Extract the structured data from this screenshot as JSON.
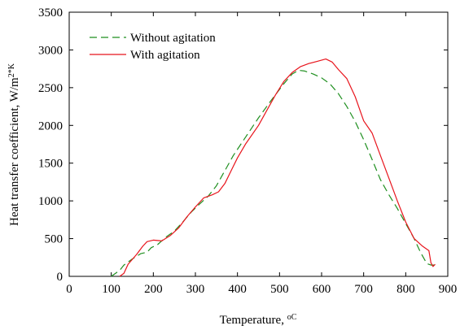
{
  "chart_data": {
    "type": "line",
    "title": "",
    "xlabel": "Temperature, ",
    "xlabel_unit": "oC",
    "ylabel": "Heat transfer coefficient, W/m",
    "ylabel_unit": "2*K",
    "xlim": [
      0,
      900
    ],
    "ylim": [
      0,
      3500
    ],
    "x_ticks": [
      0,
      100,
      200,
      300,
      400,
      500,
      600,
      700,
      800,
      900
    ],
    "y_ticks": [
      0,
      500,
      1000,
      1500,
      2000,
      2500,
      3000,
      3500
    ],
    "grid": false,
    "legend_position": "top-left",
    "series": [
      {
        "name": "Without agitation",
        "color": "#1f8f1f",
        "style": "dashed",
        "points": [
          [
            100,
            0
          ],
          [
            120,
            80
          ],
          [
            130,
            150
          ],
          [
            150,
            230
          ],
          [
            170,
            300
          ],
          [
            185,
            320
          ],
          [
            195,
            380
          ],
          [
            210,
            420
          ],
          [
            230,
            520
          ],
          [
            250,
            600
          ],
          [
            270,
            720
          ],
          [
            290,
            850
          ],
          [
            310,
            960
          ],
          [
            330,
            1060
          ],
          [
            350,
            1200
          ],
          [
            365,
            1350
          ],
          [
            370,
            1400
          ],
          [
            390,
            1600
          ],
          [
            420,
            1850
          ],
          [
            450,
            2100
          ],
          [
            480,
            2330
          ],
          [
            510,
            2550
          ],
          [
            530,
            2680
          ],
          [
            545,
            2730
          ],
          [
            560,
            2720
          ],
          [
            580,
            2680
          ],
          [
            600,
            2630
          ],
          [
            620,
            2550
          ],
          [
            640,
            2420
          ],
          [
            660,
            2250
          ],
          [
            680,
            2050
          ],
          [
            700,
            1810
          ],
          [
            720,
            1550
          ],
          [
            740,
            1280
          ],
          [
            760,
            1080
          ],
          [
            780,
            900
          ],
          [
            800,
            700
          ],
          [
            820,
            500
          ],
          [
            835,
            320
          ],
          [
            850,
            170
          ],
          [
            860,
            150
          ],
          [
            870,
            150
          ]
        ]
      },
      {
        "name": "With agitation",
        "color": "#e8141c",
        "style": "solid",
        "points": [
          [
            120,
            0
          ],
          [
            130,
            40
          ],
          [
            140,
            160
          ],
          [
            160,
            290
          ],
          [
            175,
            400
          ],
          [
            185,
            460
          ],
          [
            200,
            480
          ],
          [
            220,
            470
          ],
          [
            240,
            540
          ],
          [
            260,
            640
          ],
          [
            280,
            790
          ],
          [
            300,
            920
          ],
          [
            320,
            1040
          ],
          [
            340,
            1080
          ],
          [
            355,
            1120
          ],
          [
            370,
            1230
          ],
          [
            385,
            1400
          ],
          [
            400,
            1570
          ],
          [
            420,
            1760
          ],
          [
            450,
            2000
          ],
          [
            470,
            2200
          ],
          [
            490,
            2400
          ],
          [
            510,
            2580
          ],
          [
            530,
            2700
          ],
          [
            550,
            2780
          ],
          [
            570,
            2820
          ],
          [
            590,
            2850
          ],
          [
            610,
            2880
          ],
          [
            625,
            2840
          ],
          [
            640,
            2740
          ],
          [
            660,
            2620
          ],
          [
            680,
            2380
          ],
          [
            700,
            2060
          ],
          [
            720,
            1900
          ],
          [
            740,
            1600
          ],
          [
            760,
            1300
          ],
          [
            780,
            1000
          ],
          [
            800,
            720
          ],
          [
            820,
            500
          ],
          [
            840,
            400
          ],
          [
            855,
            340
          ],
          [
            860,
            180
          ],
          [
            865,
            130
          ],
          [
            870,
            160
          ]
        ]
      }
    ]
  }
}
